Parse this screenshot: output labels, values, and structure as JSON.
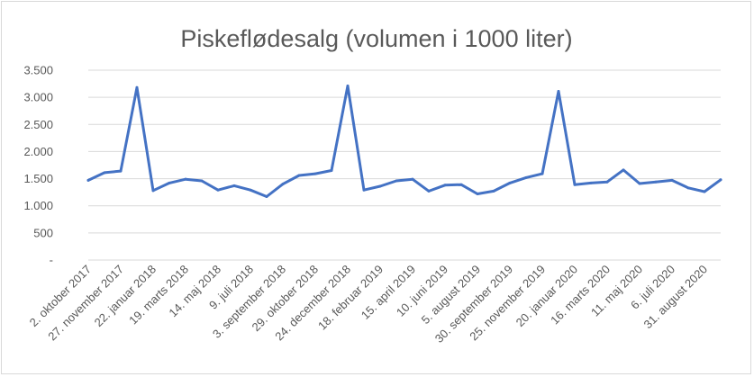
{
  "chart_data": {
    "type": "line",
    "title": "Piskeflødesalg (volumen i 1000 liter)",
    "xlabel": "",
    "ylabel": "",
    "ylim": [
      0,
      3500
    ],
    "y_ticks": [
      0,
      500,
      1000,
      1500,
      2000,
      2500,
      3000,
      3500
    ],
    "y_tick_labels": [
      "-",
      "500",
      "1.000",
      "1.500",
      "2.000",
      "2.500",
      "3.000",
      "3.500"
    ],
    "grid": true,
    "legend": "none",
    "line_color": "#4472c4",
    "x_tick_labels": [
      "2. oktober 2017",
      "27. november 2017",
      "22. januar 2018",
      "19. marts 2018",
      "14. maj 2018",
      "9. juli 2018",
      "3. september 2018",
      "29. oktober 2018",
      "24. december 2018",
      "18. februar 2019",
      "15. april 2019",
      "10. juni 2019",
      "5. august 2019",
      "30. september 2019",
      "25. november 2019",
      "20. januar 2020",
      "16. marts 2020",
      "11. maj 2020",
      "6. juli 2020",
      "31. august 2020"
    ],
    "series": [
      {
        "values": [
          1470,
          1610,
          1640,
          3180,
          1280,
          1420,
          1490,
          1460,
          1290,
          1370,
          1290,
          1170,
          1400,
          1560,
          1590,
          1650,
          3210,
          1290,
          1360,
          1460,
          1490,
          1270,
          1380,
          1390,
          1220,
          1270,
          1420,
          1520,
          1590,
          3110,
          1390,
          1420,
          1440,
          1660,
          1410,
          1440,
          1470,
          1330,
          1260,
          1480
        ]
      }
    ]
  }
}
